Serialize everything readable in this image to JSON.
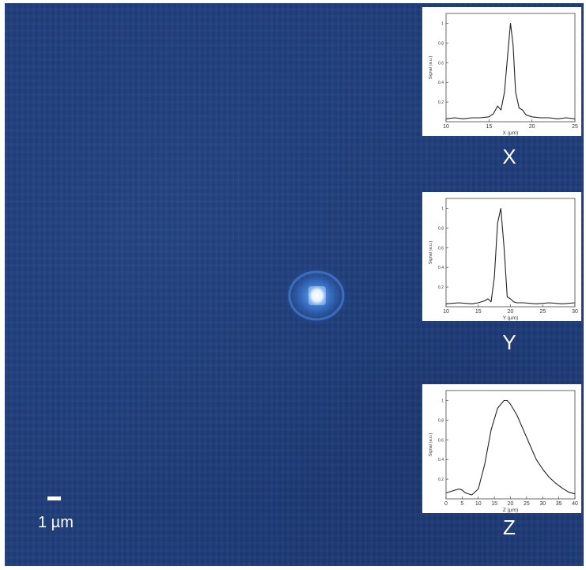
{
  "scale_bar": {
    "label": "1 µm"
  },
  "colors": {
    "background": "#1f3d7a",
    "spot_core": "#ffffff",
    "spot_halo": "#3a7ad9",
    "curve": "#222222"
  },
  "chart_data": [
    {
      "type": "line",
      "panel_label": "X",
      "xlabel": "X (µm)",
      "ylabel": "Signal (a.u.)",
      "xlim": [
        10,
        25
      ],
      "ylim": [
        0,
        1.1
      ],
      "xticks": [
        10,
        15,
        20,
        25
      ],
      "yticks": [
        0.2,
        0.4,
        0.6,
        0.8,
        1
      ],
      "x": [
        10,
        11,
        12,
        13,
        14,
        15,
        15.5,
        16,
        16.4,
        16.8,
        17.2,
        17.5,
        17.8,
        18.1,
        18.5,
        18.9,
        19.3,
        20,
        21,
        22,
        23,
        24,
        25
      ],
      "y": [
        0.03,
        0.04,
        0.03,
        0.04,
        0.04,
        0.05,
        0.08,
        0.16,
        0.12,
        0.3,
        0.7,
        1.0,
        0.78,
        0.3,
        0.14,
        0.12,
        0.07,
        0.05,
        0.04,
        0.04,
        0.03,
        0.04,
        0.03
      ]
    },
    {
      "type": "line",
      "panel_label": "Y",
      "xlabel": "Y (µm)",
      "ylabel": "Signal (a.u.)",
      "xlim": [
        10,
        30
      ],
      "ylim": [
        0,
        1.1
      ],
      "xticks": [
        10,
        15,
        20,
        25,
        30
      ],
      "yticks": [
        0.2,
        0.4,
        0.6,
        0.8,
        1
      ],
      "x": [
        10,
        12,
        14,
        15,
        16,
        16.5,
        17,
        17.5,
        18,
        18.5,
        19,
        19.5,
        20,
        20.5,
        21,
        22,
        24,
        26,
        28,
        30
      ],
      "y": [
        0.03,
        0.04,
        0.03,
        0.04,
        0.06,
        0.08,
        0.05,
        0.3,
        0.85,
        1.0,
        0.6,
        0.1,
        0.08,
        0.05,
        0.04,
        0.04,
        0.03,
        0.04,
        0.03,
        0.04
      ]
    },
    {
      "type": "line",
      "panel_label": "Z",
      "xlabel": "Z (µm)",
      "ylabel": "Signal (a.u.)",
      "xlim": [
        0,
        40
      ],
      "ylim": [
        0,
        1.1
      ],
      "xticks": [
        0,
        5,
        10,
        15,
        20,
        25,
        30,
        35,
        40
      ],
      "yticks": [
        0.2,
        0.4,
        0.6,
        0.8,
        1
      ],
      "x": [
        0,
        2,
        4,
        5,
        6,
        8,
        10,
        12,
        14,
        16,
        18,
        19,
        20,
        22,
        24,
        26,
        28,
        30,
        32,
        34,
        36,
        38,
        40
      ],
      "y": [
        0.06,
        0.08,
        0.1,
        0.09,
        0.06,
        0.04,
        0.1,
        0.35,
        0.7,
        0.92,
        1.0,
        1.0,
        0.96,
        0.85,
        0.7,
        0.55,
        0.4,
        0.3,
        0.22,
        0.16,
        0.11,
        0.07,
        0.05
      ]
    }
  ]
}
